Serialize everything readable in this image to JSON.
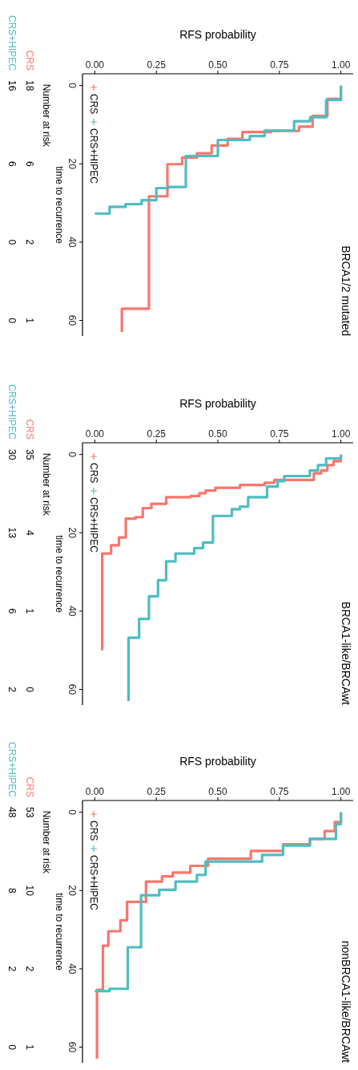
{
  "chart_data": [
    {
      "type": "line",
      "title": "BRCA1/2 mutated",
      "xlabel": "RFS probability",
      "ylabel": "time to recurrence",
      "xlim": [
        -0.05,
        1.05
      ],
      "ylim": [
        64,
        -3
      ],
      "yticks": [
        0,
        20,
        40,
        60
      ],
      "xticks": [
        {
          "value": 0,
          "label": "0.00"
        },
        {
          "value": 0.25,
          "label": "0.25"
        },
        {
          "value": 0.5,
          "label": "0.50"
        },
        {
          "value": 0.75,
          "label": "0.75"
        },
        {
          "value": 1,
          "label": "1.00"
        }
      ],
      "grid": false,
      "legend": "top left",
      "series": [
        {
          "name": "CRS",
          "color": "#f8766d",
          "x": [
            1,
            1,
            0.945,
            0.945,
            0.885,
            0.885,
            0.83,
            0.83,
            0.716,
            0.716,
            0.6,
            0.6,
            0.54,
            0.54,
            0.475,
            0.475,
            0.415,
            0.415,
            0.355,
            0.355,
            0.295,
            0.295,
            0.22,
            0.22,
            0.11,
            0.11
          ],
          "values": [
            0,
            3.4,
            3.4,
            7.8,
            7.8,
            10.5,
            10.5,
            11.6,
            11.6,
            11.9,
            11.9,
            13.6,
            13.6,
            15.3,
            15.3,
            17.3,
            17.3,
            18.4,
            18.4,
            20.1,
            20.1,
            28.3,
            28.3,
            57,
            57,
            63
          ]
        },
        {
          "name": "CRS+HIPEC",
          "color": "#4ebdc0",
          "x": [
            1,
            1,
            0.94,
            0.94,
            0.875,
            0.875,
            0.81,
            0.81,
            0.69,
            0.69,
            0.63,
            0.63,
            0.5,
            0.5,
            0.37,
            0.37,
            0.3,
            0.3,
            0.25,
            0.25,
            0.19,
            0.19,
            0.125,
            0.125,
            0.06,
            0.06,
            0
          ],
          "values": [
            0,
            3.7,
            3.7,
            8.1,
            8.1,
            9.1,
            9.1,
            11.5,
            11.5,
            12.9,
            12.9,
            13.9,
            13.9,
            18,
            18,
            25.9,
            25.9,
            26.2,
            26.2,
            29.3,
            29.3,
            30.3,
            30.3,
            31,
            31,
            32.7,
            32.7
          ]
        }
      ],
      "annotations": [
        "Number at risk",
        "18",
        "6",
        "2",
        "1",
        "16",
        "6",
        "0",
        "0"
      ]
    },
    {
      "type": "line",
      "title": "BRCA1-like/BRCAwt",
      "xlabel": "RFS probability",
      "ylabel": "time to recurrence",
      "xlim": [
        -0.05,
        1.05
      ],
      "ylim": [
        64,
        -3
      ],
      "yticks": [
        0,
        20,
        40,
        60
      ],
      "xticks": [
        {
          "value": 0,
          "label": "0.00"
        },
        {
          "value": 0.25,
          "label": "0.25"
        },
        {
          "value": 0.5,
          "label": "0.50"
        },
        {
          "value": 0.75,
          "label": "0.75"
        },
        {
          "value": 1,
          "label": "1.00"
        }
      ],
      "grid": false,
      "legend": "top left",
      "series": [
        {
          "name": "CRS",
          "color": "#f8766d",
          "x": [
            1,
            1,
            0.97,
            0.97,
            0.945,
            0.945,
            0.92,
            0.92,
            0.89,
            0.89,
            0.73,
            0.73,
            0.69,
            0.69,
            0.59,
            0.59,
            0.49,
            0.49,
            0.45,
            0.45,
            0.425,
            0.425,
            0.39,
            0.39,
            0.29,
            0.29,
            0.23,
            0.23,
            0.195,
            0.195,
            0.165,
            0.165,
            0.126,
            0.126,
            0.098,
            0.098,
            0.066,
            0.066,
            0.03,
            0.03
          ],
          "values": [
            0,
            1.7,
            1.7,
            2.7,
            2.7,
            4.1,
            4.1,
            4.8,
            4.8,
            6.5,
            6.5,
            7.2,
            7.2,
            7.8,
            7.8,
            8.5,
            8.5,
            9.2,
            9.2,
            9.9,
            9.9,
            10.6,
            10.6,
            10.9,
            10.9,
            12.6,
            12.6,
            13.7,
            13.7,
            16,
            16,
            16.4,
            16.4,
            21.2,
            21.2,
            23.2,
            23.2,
            25.3,
            25.3,
            50
          ]
        },
        {
          "name": "CRS+HIPEC",
          "color": "#4ebdc0",
          "x": [
            1,
            1,
            0.94,
            0.94,
            0.907,
            0.907,
            0.874,
            0.874,
            0.77,
            0.77,
            0.743,
            0.743,
            0.7,
            0.7,
            0.623,
            0.623,
            0.59,
            0.59,
            0.557,
            0.557,
            0.48,
            0.48,
            0.44,
            0.44,
            0.404,
            0.404,
            0.328,
            0.328,
            0.29,
            0.29,
            0.257,
            0.257,
            0.22,
            0.22,
            0.18,
            0.18,
            0.137,
            0.137
          ],
          "values": [
            0,
            1,
            1,
            2.7,
            2.7,
            4.1,
            4.1,
            5.5,
            5.5,
            6.8,
            6.8,
            8.2,
            8.2,
            10.9,
            10.9,
            13.3,
            13.3,
            14,
            14,
            15.7,
            15.7,
            22.5,
            22.5,
            23.9,
            23.9,
            25.3,
            25.3,
            27.3,
            27.3,
            32.1,
            32.1,
            36.2,
            36.2,
            42,
            42,
            46.8,
            46.8,
            63
          ]
        }
      ],
      "annotations": [
        "Number at risk",
        "35",
        "4",
        "1",
        "0",
        "30",
        "13",
        "6",
        "2"
      ]
    },
    {
      "type": "line",
      "title": "nonBRCA1-like/BRCAwt",
      "xlabel": "RFS probability",
      "ylabel": "time to recurrence",
      "xlim": [
        -0.05,
        1.05
      ],
      "ylim": [
        64,
        -3
      ],
      "yticks": [
        0,
        20,
        40,
        60
      ],
      "xticks": [
        {
          "value": 0,
          "label": "0.00"
        },
        {
          "value": 0.25,
          "label": "0.25"
        },
        {
          "value": 0.5,
          "label": "0.50"
        },
        {
          "value": 0.75,
          "label": "0.75"
        },
        {
          "value": 1,
          "label": "1.00"
        }
      ],
      "grid": false,
      "legend": "top left",
      "series": [
        {
          "name": "CRS",
          "color": "#f8766d",
          "x": [
            1,
            1,
            0.975,
            0.975,
            0.934,
            0.934,
            0.874,
            0.874,
            0.765,
            0.765,
            0.634,
            0.634,
            0.46,
            0.46,
            0.388,
            0.388,
            0.317,
            0.317,
            0.273,
            0.273,
            0.208,
            0.208,
            0.131,
            0.131,
            0.104,
            0.104,
            0.055,
            0.055,
            0.033,
            0.033,
            0.009,
            0.009
          ],
          "values": [
            0,
            2.5,
            2.5,
            4.8,
            4.8,
            6.8,
            6.8,
            8.2,
            8.2,
            9.9,
            9.9,
            11.9,
            11.9,
            13.7,
            13.7,
            15.4,
            15.4,
            16.4,
            16.4,
            17.7,
            17.7,
            22.9,
            22.9,
            27.6,
            27.6,
            30.4,
            30.4,
            34.1,
            34.1,
            45.4,
            45.4,
            63
          ]
        },
        {
          "name": "CRS+HIPEC",
          "color": "#4ebdc0",
          "x": [
            1,
            1,
            0.98,
            0.98,
            0.874,
            0.874,
            0.765,
            0.765,
            0.68,
            0.68,
            0.45,
            0.45,
            0.415,
            0.415,
            0.328,
            0.328,
            0.262,
            0.262,
            0.188,
            0.188,
            0.134,
            0.134,
            0.06,
            0.06,
            0
          ],
          "values": [
            0,
            3,
            3,
            6.8,
            6.8,
            8.5,
            8.5,
            10.9,
            10.9,
            12.6,
            12.6,
            16,
            16,
            17.7,
            17.7,
            19.8,
            19.8,
            21.2,
            21.2,
            34.5,
            34.5,
            45.1,
            45.1,
            45.7,
            45.7
          ]
        }
      ],
      "annotations": [
        "Number at risk",
        "53",
        "10",
        "2",
        "1",
        "48",
        "8",
        "2",
        "0"
      ]
    }
  ]
}
